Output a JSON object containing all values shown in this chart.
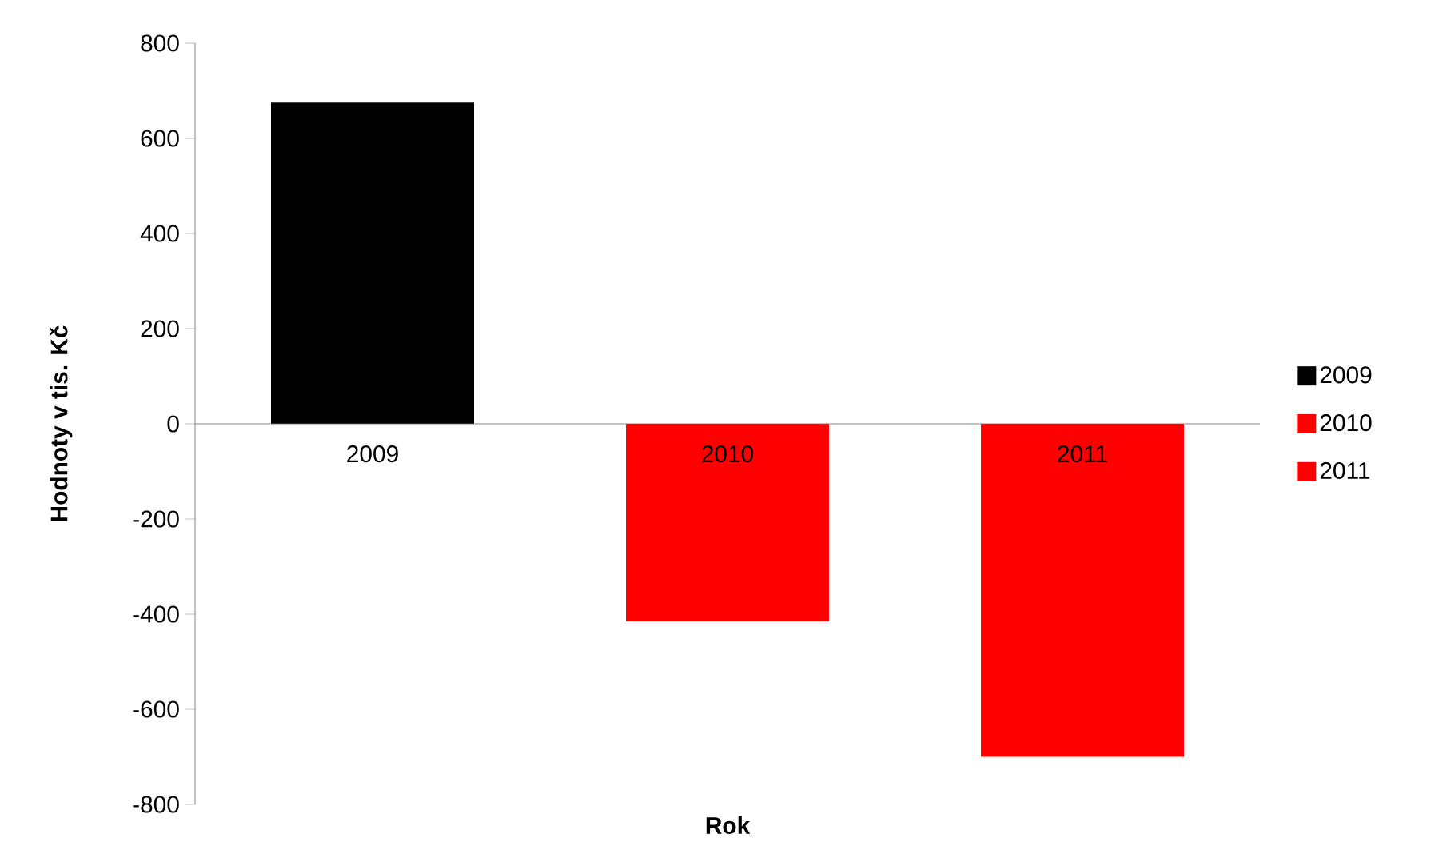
{
  "chart_data": {
    "type": "bar",
    "xlabel": "Rok",
    "ylabel": "Hodnoty v tis. Kč",
    "categories": [
      "2009",
      "2010",
      "2011"
    ],
    "series": [
      {
        "name": "2009",
        "color": "#000000",
        "values": [
          675,
          null,
          null
        ]
      },
      {
        "name": "2010",
        "color": "#ff0000",
        "values": [
          null,
          -415,
          null
        ]
      },
      {
        "name": "2011",
        "color": "#ff0000",
        "values": [
          null,
          null,
          -700
        ]
      }
    ],
    "ylim": [
      -800,
      800
    ],
    "yticks": [
      -800,
      -600,
      -400,
      -200,
      0,
      200,
      400,
      600,
      800
    ],
    "legend": "right"
  }
}
